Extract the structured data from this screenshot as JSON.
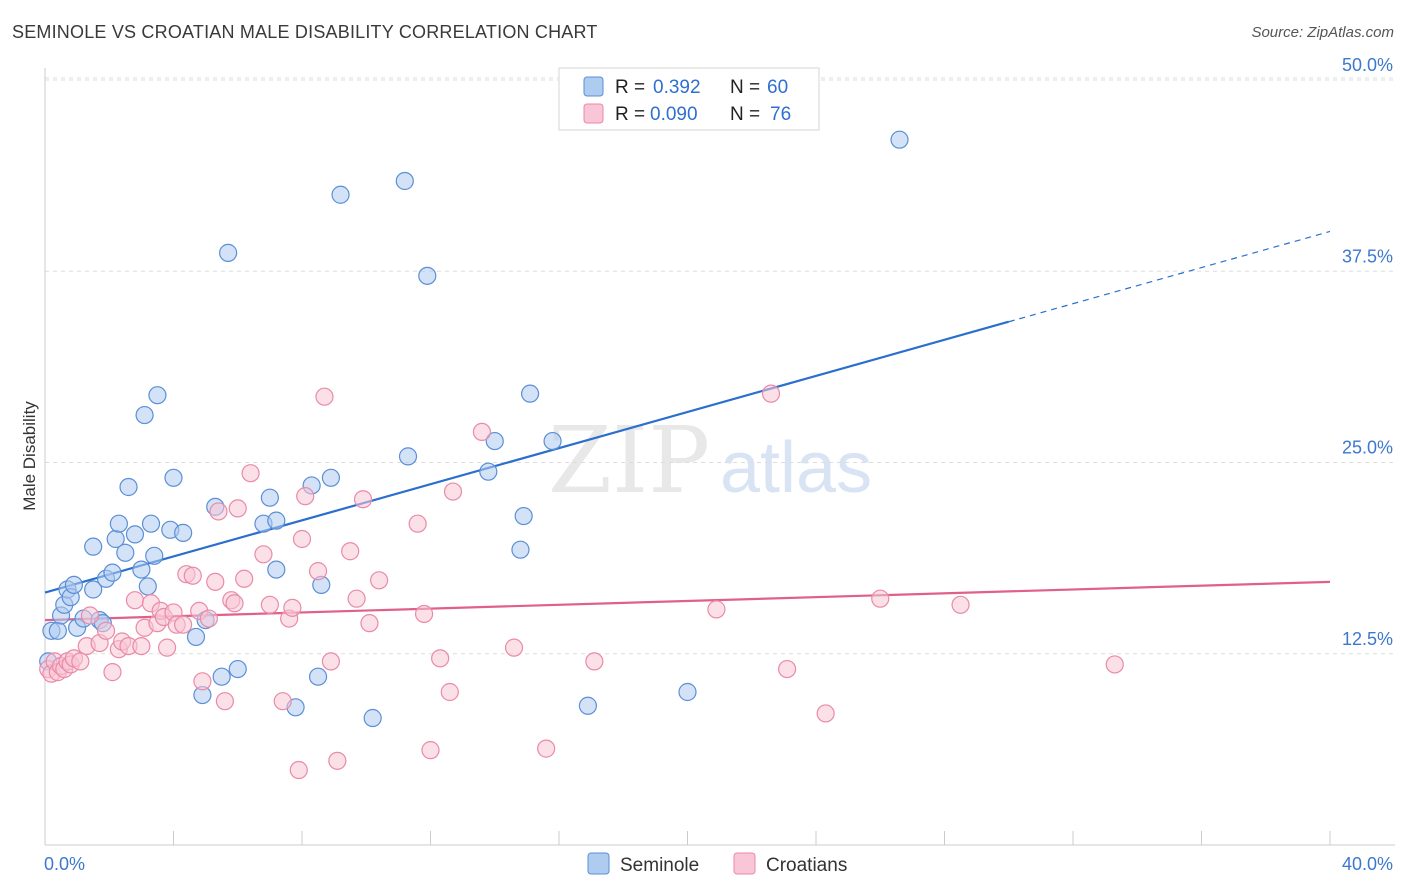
{
  "title": "SEMINOLE VS CROATIAN MALE DISABILITY CORRELATION CHART",
  "source": "Source: ZipAtlas.com",
  "watermark": {
    "zip": "ZIP",
    "atlas": "atlas"
  },
  "chart_data": {
    "type": "scatter",
    "ylabel": "Male Disability",
    "xlim": [
      0,
      40
    ],
    "ylim": [
      0,
      50
    ],
    "x_tick_labels": [
      "0.0%",
      "40.0%"
    ],
    "y_ticks": [
      12.5,
      25.0,
      37.5,
      50.0
    ],
    "y_tick_labels": [
      "12.5%",
      "25.0%",
      "37.5%",
      "50.0%"
    ],
    "legend_stats": [
      {
        "r_label": "R =",
        "r": "0.392",
        "n_label": "N =",
        "n": "60"
      },
      {
        "r_label": "R =",
        "r": "0.090",
        "n_label": "N =",
        "n": "76"
      }
    ],
    "series": [
      {
        "name": "Seminole",
        "color": "#5b8fd6",
        "fill": "#aecbf0",
        "line_color": "#2a6fce",
        "trend": {
          "x0": 0,
          "y0": 16.5,
          "x1": 30,
          "y1": 34.2,
          "dash_to_x": 40,
          "dash_y": 40.1
        },
        "points": [
          [
            0.2,
            14.0
          ],
          [
            0.4,
            14.0
          ],
          [
            0.5,
            15.0
          ],
          [
            0.6,
            15.7
          ],
          [
            0.7,
            16.7
          ],
          [
            0.8,
            16.2
          ],
          [
            0.9,
            17.0
          ],
          [
            1.0,
            14.2
          ],
          [
            1.2,
            14.8
          ],
          [
            1.5,
            16.7
          ],
          [
            1.5,
            19.5
          ],
          [
            1.7,
            14.7
          ],
          [
            1.8,
            14.5
          ],
          [
            1.9,
            17.4
          ],
          [
            2.1,
            17.8
          ],
          [
            2.2,
            20.0
          ],
          [
            2.3,
            21.0
          ],
          [
            2.5,
            19.1
          ],
          [
            2.6,
            23.4
          ],
          [
            2.8,
            20.3
          ],
          [
            3.0,
            18.0
          ],
          [
            3.1,
            28.1
          ],
          [
            3.2,
            16.9
          ],
          [
            3.3,
            21.0
          ],
          [
            3.4,
            18.9
          ],
          [
            3.5,
            29.4
          ],
          [
            3.9,
            20.6
          ],
          [
            4.0,
            24.0
          ],
          [
            4.3,
            20.4
          ],
          [
            4.7,
            13.6
          ],
          [
            4.9,
            9.8
          ],
          [
            5.0,
            14.7
          ],
          [
            5.3,
            22.1
          ],
          [
            5.5,
            11.0
          ],
          [
            5.7,
            38.7
          ],
          [
            6.0,
            11.5
          ],
          [
            6.8,
            21.0
          ],
          [
            7.0,
            22.7
          ],
          [
            7.2,
            18.0
          ],
          [
            7.2,
            21.2
          ],
          [
            7.8,
            9.0
          ],
          [
            8.3,
            23.5
          ],
          [
            8.5,
            11.0
          ],
          [
            8.6,
            17.0
          ],
          [
            8.9,
            24.0
          ],
          [
            9.2,
            42.5
          ],
          [
            10.2,
            8.3
          ],
          [
            11.2,
            43.4
          ],
          [
            11.3,
            25.4
          ],
          [
            11.9,
            37.2
          ],
          [
            13.8,
            24.4
          ],
          [
            14.0,
            26.4
          ],
          [
            14.8,
            19.3
          ],
          [
            14.9,
            21.5
          ],
          [
            15.1,
            29.5
          ],
          [
            15.8,
            26.4
          ],
          [
            16.9,
            9.1
          ],
          [
            20.0,
            10.0
          ],
          [
            26.6,
            46.1
          ],
          [
            0.1,
            12.0
          ]
        ]
      },
      {
        "name": "Croatians",
        "color": "#ea8aa8",
        "fill": "#f8c6d6",
        "line_color": "#e0608a",
        "trend": {
          "x0": 0,
          "y0": 14.7,
          "x1": 40,
          "y1": 17.2
        },
        "points": [
          [
            0.1,
            11.5
          ],
          [
            0.2,
            11.2
          ],
          [
            0.3,
            12.0
          ],
          [
            0.4,
            11.3
          ],
          [
            0.5,
            11.7
          ],
          [
            0.6,
            11.5
          ],
          [
            0.7,
            12.0
          ],
          [
            0.8,
            11.8
          ],
          [
            0.9,
            12.2
          ],
          [
            1.1,
            12.0
          ],
          [
            1.3,
            13.0
          ],
          [
            1.4,
            15.0
          ],
          [
            1.7,
            13.2
          ],
          [
            1.9,
            14.0
          ],
          [
            2.1,
            11.3
          ],
          [
            2.3,
            12.8
          ],
          [
            2.4,
            13.3
          ],
          [
            2.6,
            13.0
          ],
          [
            2.8,
            16.0
          ],
          [
            3.0,
            13.0
          ],
          [
            3.1,
            14.2
          ],
          [
            3.3,
            15.8
          ],
          [
            3.5,
            14.5
          ],
          [
            3.6,
            15.3
          ],
          [
            3.7,
            14.9
          ],
          [
            3.8,
            12.9
          ],
          [
            4.0,
            15.2
          ],
          [
            4.1,
            14.4
          ],
          [
            4.3,
            14.4
          ],
          [
            4.4,
            17.7
          ],
          [
            4.6,
            17.6
          ],
          [
            4.8,
            15.3
          ],
          [
            4.9,
            10.7
          ],
          [
            5.1,
            14.8
          ],
          [
            5.3,
            17.2
          ],
          [
            5.4,
            21.8
          ],
          [
            5.6,
            9.4
          ],
          [
            5.8,
            16.0
          ],
          [
            5.9,
            15.8
          ],
          [
            6.0,
            22.0
          ],
          [
            6.2,
            17.4
          ],
          [
            6.4,
            24.3
          ],
          [
            6.8,
            19.0
          ],
          [
            7.0,
            15.7
          ],
          [
            7.4,
            9.4
          ],
          [
            7.6,
            14.8
          ],
          [
            7.7,
            15.5
          ],
          [
            7.9,
            4.9
          ],
          [
            8.0,
            20.0
          ],
          [
            8.1,
            22.8
          ],
          [
            8.5,
            17.9
          ],
          [
            8.7,
            29.3
          ],
          [
            8.9,
            12.0
          ],
          [
            9.1,
            5.5
          ],
          [
            9.5,
            19.2
          ],
          [
            9.7,
            16.1
          ],
          [
            9.9,
            22.6
          ],
          [
            10.1,
            14.5
          ],
          [
            10.4,
            17.3
          ],
          [
            11.6,
            21.0
          ],
          [
            11.8,
            15.1
          ],
          [
            12.0,
            6.2
          ],
          [
            12.3,
            12.2
          ],
          [
            12.6,
            10.0
          ],
          [
            12.7,
            23.1
          ],
          [
            13.6,
            27.0
          ],
          [
            14.6,
            12.9
          ],
          [
            15.6,
            6.3
          ],
          [
            17.1,
            12.0
          ],
          [
            20.9,
            15.4
          ],
          [
            22.6,
            29.5
          ],
          [
            23.1,
            11.5
          ],
          [
            24.3,
            8.6
          ],
          [
            26.0,
            16.1
          ],
          [
            28.5,
            15.7
          ],
          [
            33.3,
            11.8
          ]
        ]
      }
    ]
  }
}
